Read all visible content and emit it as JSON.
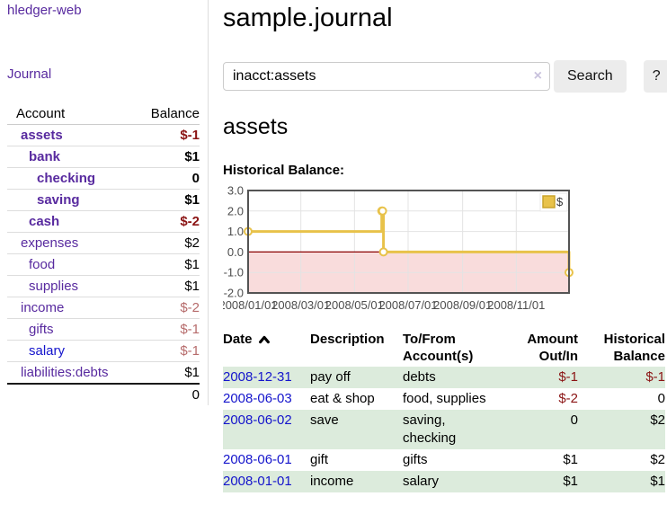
{
  "colors": {
    "link_purple": "#582a9f",
    "link_blue": "#1414cc",
    "negative_bold": "#8b1414",
    "negative_soft": "#b66b6b",
    "row_stripe_green": "#dcebdc",
    "button_gray": "#ececec"
  },
  "sidebar": {
    "brand": "hledger-web",
    "journal_link": "Journal",
    "table": {
      "account_header": "Account",
      "balance_header": "Balance",
      "accounts": [
        {
          "name": "assets",
          "depth": 0,
          "balance": "$-1",
          "bold": true
        },
        {
          "name": "bank",
          "depth": 1,
          "balance": "$1",
          "bold": true
        },
        {
          "name": "checking",
          "depth": 2,
          "balance": "0",
          "bold": true
        },
        {
          "name": "saving",
          "depth": 2,
          "balance": "$1",
          "bold": true
        },
        {
          "name": "cash",
          "depth": 1,
          "balance": "$-2",
          "bold": true
        },
        {
          "name": "expenses",
          "depth": 0,
          "balance": "$2",
          "bold": false
        },
        {
          "name": "food",
          "depth": 1,
          "balance": "$1",
          "bold": false
        },
        {
          "name": "supplies",
          "depth": 1,
          "balance": "$1",
          "bold": false
        },
        {
          "name": "income",
          "depth": 0,
          "balance": "$-2",
          "bold": false
        },
        {
          "name": "gifts",
          "depth": 1,
          "balance": "$-1",
          "bold": false
        },
        {
          "name": "salary",
          "depth": 1,
          "balance": "$-1",
          "bold": false,
          "link_color": "#1414cc"
        },
        {
          "name": "liabilities:debts",
          "depth": 0,
          "balance": "$1",
          "bold": false
        }
      ],
      "total": "0"
    }
  },
  "main": {
    "title": "sample.journal",
    "search": {
      "value": "inacct:assets",
      "clear_icon": "×",
      "button_label": "Search",
      "help_label": "?"
    },
    "account_heading": "assets",
    "chart_label": "Historical Balance:"
  },
  "register": {
    "headers": {
      "date": "Date",
      "date_sort": "ascending",
      "description": "Description",
      "tofrom_line1": "To/From",
      "tofrom_line2": "Account(s)",
      "amount_line1": "Amount",
      "amount_line2": "Out/In",
      "balance_line1": "Historical",
      "balance_line2": "Balance"
    },
    "rows": [
      {
        "date": "2008-12-31",
        "description": "pay off",
        "accounts": "debts",
        "amount": "$-1",
        "balance": "$-1"
      },
      {
        "date": "2008-06-03",
        "description": "eat & shop",
        "accounts": "food, supplies",
        "amount": "$-2",
        "balance": "0"
      },
      {
        "date": "2008-06-02",
        "description": "save",
        "accounts": "saving, checking",
        "amount": "0",
        "balance": "$2"
      },
      {
        "date": "2008-06-01",
        "description": "gift",
        "accounts": "gifts",
        "amount": "$1",
        "balance": "$2"
      },
      {
        "date": "2008-01-01",
        "description": "income",
        "accounts": "salary",
        "amount": "$1",
        "balance": "$1"
      }
    ]
  },
  "chart_data": {
    "type": "line",
    "step": true,
    "title": "Historical Balance:",
    "xlabel": "",
    "ylabel": "",
    "ylim": [
      -2,
      3
    ],
    "yticks": [
      3,
      2,
      1,
      0,
      -1,
      -2
    ],
    "xlim_days": [
      0,
      365
    ],
    "xticks": [
      {
        "day": 0,
        "label": "2008/01/01"
      },
      {
        "day": 60,
        "label": "2008/03/01"
      },
      {
        "day": 121,
        "label": "2008/05/01"
      },
      {
        "day": 182,
        "label": "2008/07/01"
      },
      {
        "day": 244,
        "label": "2008/09/01"
      },
      {
        "day": 305,
        "label": "2008/11/01"
      }
    ],
    "series": [
      {
        "name": "$",
        "points": [
          {
            "date": "2008-01-01",
            "day": 0,
            "value": 1
          },
          {
            "date": "2008-06-01",
            "day": 152,
            "value": 2
          },
          {
            "date": "2008-06-02",
            "day": 153,
            "value": 2
          },
          {
            "date": "2008-06-03",
            "day": 154,
            "value": 0
          },
          {
            "date": "2008-12-31",
            "day": 365,
            "value": -1
          }
        ]
      }
    ],
    "legend": [
      "$"
    ],
    "legend_position": "top-right",
    "grid": true,
    "negative_region_shaded": true,
    "colors": {
      "line": "#e8c24a",
      "marker_fill": "#ffffff",
      "negative_region": "#f9dcdc",
      "zero_line": "#8b0000",
      "grid": "#e3e3e3",
      "border": "#545454",
      "tick_text": "#4d4d4d",
      "legend_square_border": "#c9a32a"
    }
  }
}
